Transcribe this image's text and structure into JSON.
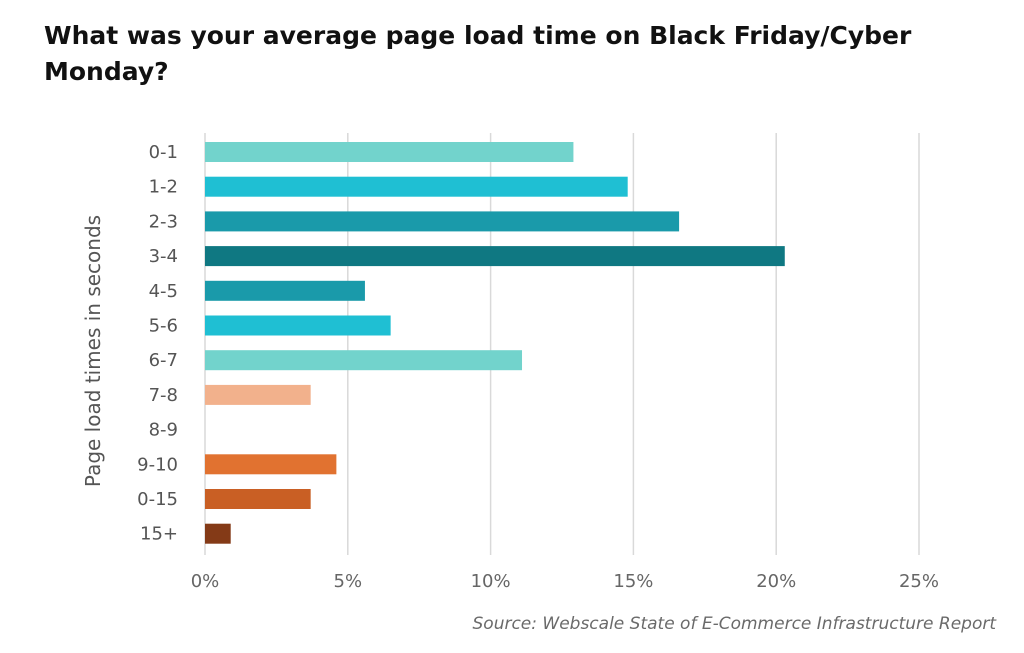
{
  "chart_data": {
    "type": "bar",
    "orientation": "horizontal",
    "title": "What was your average page load time on Black Friday/Cyber Monday?",
    "ylabel": "Page load times in seconds",
    "xlabel": "",
    "categories": [
      "0-1",
      "1-2",
      "2-3",
      "3-4",
      "4-5",
      "5-6",
      "6-7",
      "7-8",
      "8-9",
      "9-10",
      "0-15",
      "15+"
    ],
    "values": [
      12.9,
      14.8,
      16.6,
      20.3,
      5.6,
      6.5,
      11.1,
      3.7,
      0,
      4.6,
      3.7,
      0.9
    ],
    "bar_colors": [
      "#72d3cc",
      "#1fbfd3",
      "#1a9aaa",
      "#0f7882",
      "#1a9aaa",
      "#1fbfd3",
      "#72d3cc",
      "#f2b18c",
      "#f2b18c",
      "#e17230",
      "#c95f24",
      "#843a17"
    ],
    "xticks": [
      "0%",
      "5%",
      "10%",
      "15%",
      "20%",
      "25%"
    ],
    "xlim": [
      0,
      25
    ],
    "grid": "vertical",
    "legend": "none",
    "source": "Source: Webscale State of E-Commerce Infrastructure Report"
  }
}
